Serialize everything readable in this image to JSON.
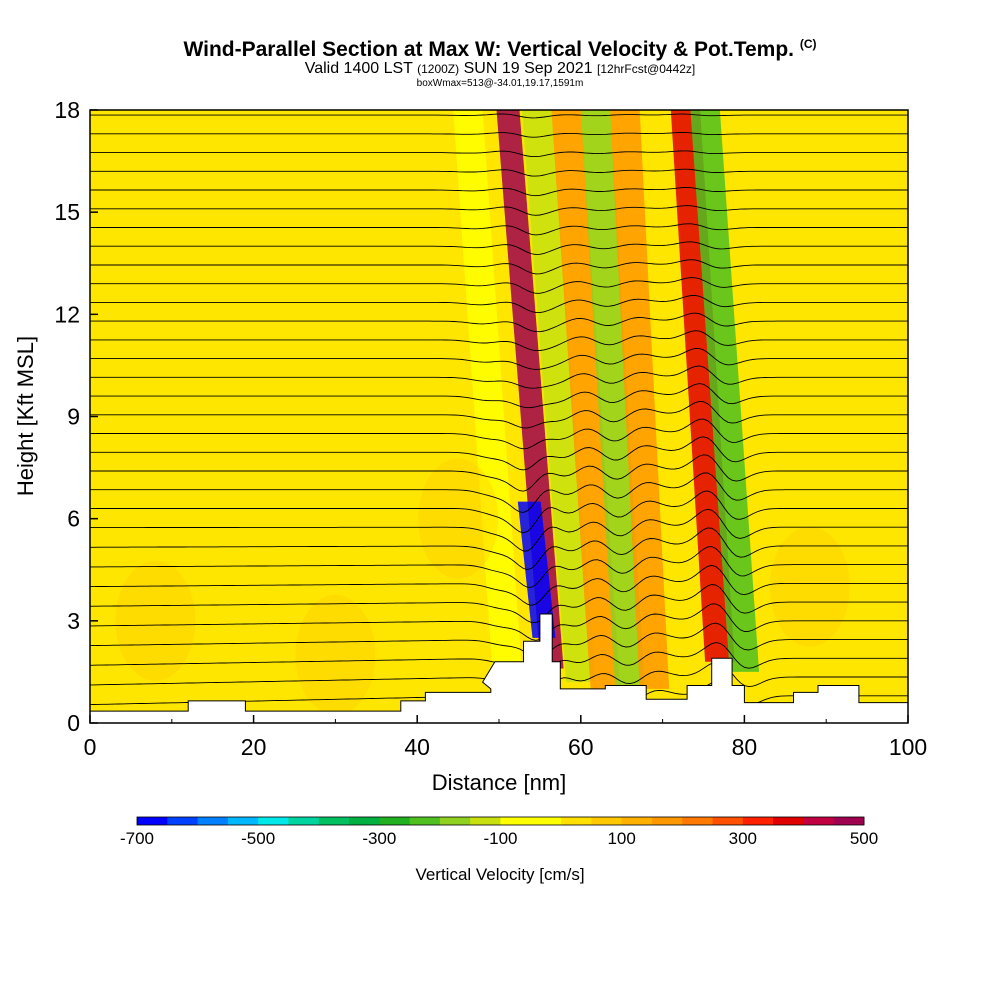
{
  "title": "Wind-Parallel Section at Max W: Vertical Velocity & Pot.Temp.",
  "copyright": "(C)",
  "subtitle_main_a": "Valid 1400 LST",
  "subtitle_zulu": "(1200Z)",
  "subtitle_main_b": "SUN 19 Sep 2021",
  "subtitle_fcst": "[12hrFcst@0442z]",
  "box_info": "boxWmax=513@-34.01,19.17,1591m",
  "chart_data": {
    "type": "heatmap",
    "xlabel": "Distance [nm]",
    "ylabel": "Height [Kft MSL]",
    "xlim": [
      0,
      100
    ],
    "ylim": [
      0,
      18
    ],
    "x_ticks": [
      "0",
      "20",
      "40",
      "60",
      "80",
      "100"
    ],
    "y_ticks": [
      "0",
      "3",
      "6",
      "9",
      "12",
      "15",
      "18"
    ],
    "terrain": [
      [
        0,
        0.35
      ],
      [
        12,
        0.35
      ],
      [
        12,
        0.65
      ],
      [
        19,
        0.65
      ],
      [
        19,
        0.35
      ],
      [
        38,
        0.35
      ],
      [
        38,
        0.65
      ],
      [
        41,
        0.65
      ],
      [
        41,
        0.9
      ],
      [
        49,
        0.9
      ],
      [
        49,
        1.0
      ],
      [
        48,
        1.2
      ],
      [
        49.5,
        1.8
      ],
      [
        53,
        1.8
      ],
      [
        53,
        2.4
      ],
      [
        55,
        2.4
      ],
      [
        55,
        3.2
      ],
      [
        56.5,
        3.2
      ],
      [
        56.5,
        1.8
      ],
      [
        57.5,
        1.8
      ],
      [
        57.5,
        1.0
      ],
      [
        63,
        1.0
      ],
      [
        63,
        1.1
      ],
      [
        68,
        1.1
      ],
      [
        68,
        0.7
      ],
      [
        73,
        0.7
      ],
      [
        73,
        1.1
      ],
      [
        76,
        1.1
      ],
      [
        76,
        1.9
      ],
      [
        78.5,
        1.9
      ],
      [
        78.5,
        1.1
      ],
      [
        80,
        1.1
      ],
      [
        80,
        0.6
      ],
      [
        86,
        0.6
      ],
      [
        86,
        0.9
      ],
      [
        89,
        0.9
      ],
      [
        89,
        1.1
      ],
      [
        94,
        1.1
      ],
      [
        94,
        0.6
      ],
      [
        100,
        0.6
      ]
    ],
    "vertical_velocity_features": [
      {
        "x_center": 51,
        "y_base": 1.5,
        "y_top": 18,
        "tilt": 8,
        "value": -100
      },
      {
        "x_center": 56.5,
        "y_base": 1.6,
        "y_top": 18,
        "tilt": 9,
        "value": 450
      },
      {
        "x_center": 55.5,
        "y_base": 2.5,
        "y_top": 6.5,
        "tilt": 3,
        "value": -700
      },
      {
        "x_center": 60,
        "y_base": 1.2,
        "y_top": 18,
        "tilt": 9,
        "value": -150
      },
      {
        "x_center": 63,
        "y_base": 1.0,
        "y_top": 18,
        "tilt": 8,
        "value": 150
      },
      {
        "x_center": 66,
        "y_base": 1.0,
        "y_top": 18,
        "tilt": 7,
        "value": -200
      },
      {
        "x_center": 69,
        "y_base": 1.0,
        "y_top": 18,
        "tilt": 6,
        "value": 150
      },
      {
        "x_center": 77,
        "y_base": 1.8,
        "y_top": 18,
        "tilt": 7,
        "value": 350
      },
      {
        "x_center": 80,
        "y_base": 1.5,
        "y_top": 18,
        "tilt": 8,
        "value": -250
      }
    ],
    "colorbar": {
      "label": "Vertical Velocity [cm/s]",
      "tick_labels": [
        "-700",
        "-500",
        "-300",
        "-100",
        "100",
        "300",
        "500"
      ],
      "colors": [
        "#0000ff",
        "#0040ff",
        "#0080ff",
        "#00b8ff",
        "#00e8e8",
        "#00d4a0",
        "#00c060",
        "#00b040",
        "#20b020",
        "#50c020",
        "#90d020",
        "#c8e010",
        "#ffff00",
        "#ffff00",
        "#ffe000",
        "#ffc800",
        "#ffb000",
        "#ff9800",
        "#ff7800",
        "#ff5000",
        "#ff2000",
        "#e00000",
        "#c00040",
        "#a00050"
      ]
    }
  }
}
